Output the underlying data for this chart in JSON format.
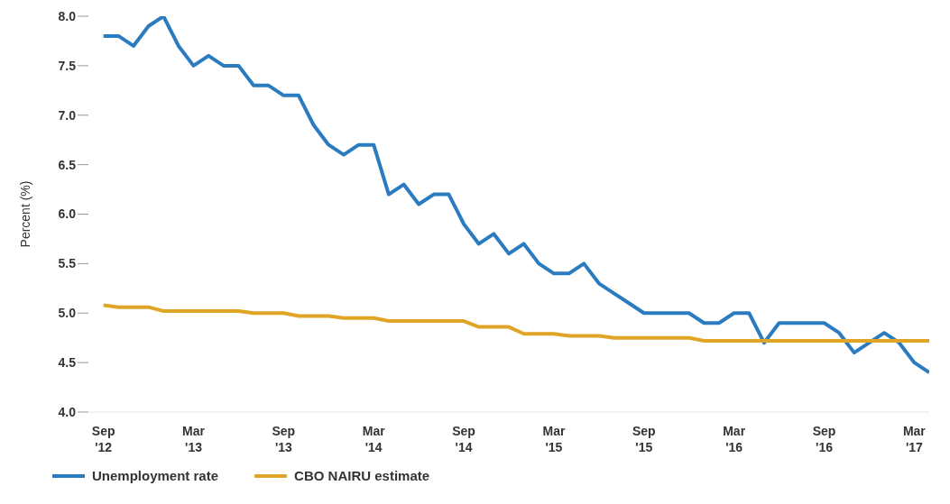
{
  "chart_data": {
    "type": "line",
    "ylabel": "Percent (%)",
    "x": [
      "2012-09",
      "2012-10",
      "2012-11",
      "2012-12",
      "2013-01",
      "2013-02",
      "2013-03",
      "2013-04",
      "2013-05",
      "2013-06",
      "2013-07",
      "2013-08",
      "2013-09",
      "2013-10",
      "2013-11",
      "2013-12",
      "2014-01",
      "2014-02",
      "2014-03",
      "2014-04",
      "2014-05",
      "2014-06",
      "2014-07",
      "2014-08",
      "2014-09",
      "2014-10",
      "2014-11",
      "2014-12",
      "2015-01",
      "2015-02",
      "2015-03",
      "2015-04",
      "2015-05",
      "2015-06",
      "2015-07",
      "2015-08",
      "2015-09",
      "2015-10",
      "2015-11",
      "2015-12",
      "2016-01",
      "2016-02",
      "2016-03",
      "2016-04",
      "2016-05",
      "2016-06",
      "2016-07",
      "2016-08",
      "2016-09",
      "2016-10",
      "2016-11",
      "2016-12",
      "2017-01",
      "2017-02",
      "2017-03",
      "2017-04"
    ],
    "series": [
      {
        "name": "Unemployment rate",
        "color": "#2b7bc0",
        "values": [
          7.8,
          7.8,
          7.7,
          7.9,
          8.0,
          7.7,
          7.5,
          7.6,
          7.5,
          7.5,
          7.3,
          7.3,
          7.2,
          7.2,
          6.9,
          6.7,
          6.6,
          6.7,
          6.7,
          6.2,
          6.3,
          6.1,
          6.2,
          6.2,
          5.9,
          5.7,
          5.8,
          5.6,
          5.7,
          5.5,
          5.4,
          5.4,
          5.5,
          5.3,
          5.2,
          5.1,
          5.0,
          5.0,
          5.0,
          5.0,
          4.9,
          4.9,
          5.0,
          5.0,
          4.7,
          4.9,
          4.9,
          4.9,
          4.9,
          4.8,
          4.6,
          4.7,
          4.8,
          4.7,
          4.5,
          4.4
        ]
      },
      {
        "name": "CBO NAIRU estimate",
        "color": "#e0a526",
        "values": [
          5.08,
          5.06,
          5.06,
          5.06,
          5.02,
          5.02,
          5.02,
          5.02,
          5.02,
          5.02,
          5.0,
          5.0,
          5.0,
          4.97,
          4.97,
          4.97,
          4.95,
          4.95,
          4.95,
          4.92,
          4.92,
          4.92,
          4.92,
          4.92,
          4.92,
          4.86,
          4.86,
          4.86,
          4.79,
          4.79,
          4.79,
          4.77,
          4.77,
          4.77,
          4.75,
          4.75,
          4.75,
          4.75,
          4.75,
          4.75,
          4.72,
          4.72,
          4.72,
          4.72,
          4.72,
          4.72,
          4.72,
          4.72,
          4.72,
          4.72,
          4.72,
          4.72,
          4.72,
          4.72,
          4.72,
          4.72
        ]
      }
    ],
    "xlim": [
      "2012-08",
      "2017-04"
    ],
    "xticks": [
      {
        "value": "2012-09",
        "label": "Sep\n'12"
      },
      {
        "value": "2013-03",
        "label": "Mar\n'13"
      },
      {
        "value": "2013-09",
        "label": "Sep\n'13"
      },
      {
        "value": "2014-03",
        "label": "Mar\n'14"
      },
      {
        "value": "2014-09",
        "label": "Sep\n'14"
      },
      {
        "value": "2015-03",
        "label": "Mar\n'15"
      },
      {
        "value": "2015-09",
        "label": "Sep\n'15"
      },
      {
        "value": "2016-03",
        "label": "Mar\n'16"
      },
      {
        "value": "2016-09",
        "label": "Sep\n'16"
      },
      {
        "value": "2017-03",
        "label": "Mar\n'17"
      }
    ],
    "ylim": [
      4,
      8
    ],
    "yticks": [
      {
        "value": 4,
        "label": "4.0"
      },
      {
        "value": 4.5,
        "label": "4.5"
      },
      {
        "value": 5,
        "label": "5.0"
      },
      {
        "value": 5.5,
        "label": "5.5"
      },
      {
        "value": 6,
        "label": "6.0"
      },
      {
        "value": 6.5,
        "label": "6.5"
      },
      {
        "value": 7,
        "label": "7.0"
      },
      {
        "value": 7.5,
        "label": "7.5"
      },
      {
        "value": 8,
        "label": "8.0"
      }
    ],
    "grid": false,
    "legend": "bottom",
    "marker": "none",
    "line_style": "solid"
  }
}
